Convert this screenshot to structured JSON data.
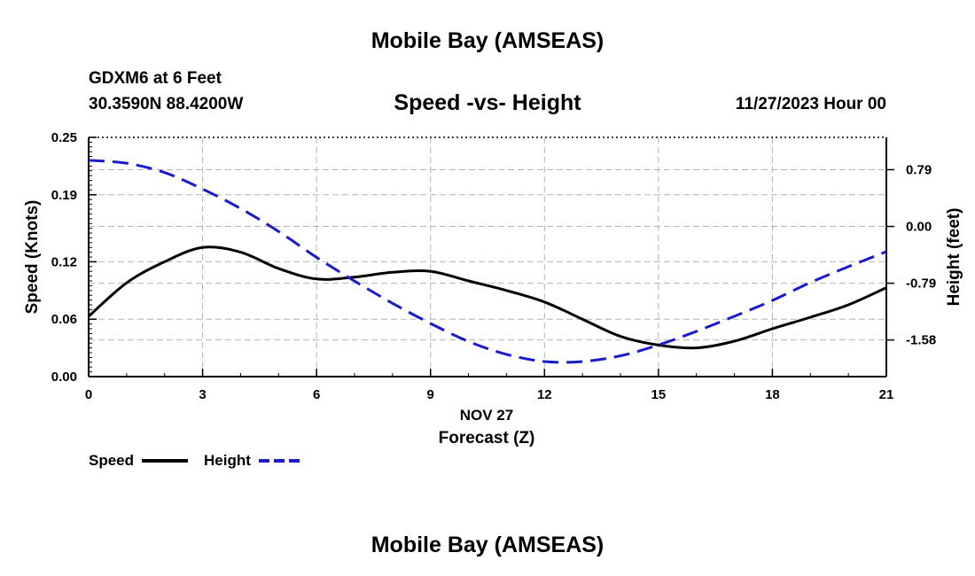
{
  "page": {
    "title": "Mobile Bay (AMSEAS)",
    "title_repeat": "Mobile Bay (AMSEAS)",
    "station": "GDXM6 at 6 Feet",
    "coords": "30.3590N  88.4200W",
    "subtitle": "Speed -vs- Height",
    "datetime": "11/27/2023 Hour 00"
  },
  "colors": {
    "speed": "#000000",
    "height": "#1a1acc",
    "grid": "#b4b4b4"
  },
  "chart_data": {
    "type": "line",
    "title": "Speed -vs- Height",
    "xlabel": "Forecast (Z)",
    "xdate": "NOV 27",
    "xlim": [
      0,
      21
    ],
    "xticks": [
      0,
      3,
      6,
      9,
      12,
      15,
      18,
      21
    ],
    "x_tick_labels": [
      "0",
      "3",
      "6",
      "9",
      "12",
      "15",
      "18",
      "21"
    ],
    "ylabel_left": "Speed (Knots)",
    "ylim_left": [
      0,
      0.25
    ],
    "yticks_left": [
      0,
      0.06,
      0.12,
      0.19,
      0.25
    ],
    "y_tick_labels_left": [
      "0.00",
      "0.06",
      "0.12",
      "0.19",
      "0.25"
    ],
    "ylabel_right": "Height (feet)",
    "ylim_right": [
      -2.09,
      1.24
    ],
    "yticks_right": [
      -1.58,
      -0.79,
      0.0,
      0.79
    ],
    "y_tick_labels_right": [
      "-1.58",
      "-0.79",
      "0.00",
      "0.79"
    ],
    "grid": true,
    "series": [
      {
        "name": "Speed",
        "axis": "left",
        "style": "solid",
        "x": [
          0,
          1,
          2,
          3,
          4,
          5,
          6,
          7,
          8,
          9,
          10,
          11,
          12,
          13,
          14,
          15,
          16,
          17,
          18,
          19,
          20,
          21
        ],
        "values": [
          0.063,
          0.098,
          0.12,
          0.135,
          0.13,
          0.113,
          0.102,
          0.104,
          0.109,
          0.11,
          0.1,
          0.09,
          0.078,
          0.06,
          0.042,
          0.033,
          0.03,
          0.037,
          0.05,
          0.062,
          0.075,
          0.093
        ]
      },
      {
        "name": "Height",
        "axis": "right",
        "style": "dashed",
        "x": [
          0,
          1,
          2,
          3,
          4,
          5,
          6,
          7,
          8,
          9,
          10,
          11,
          12,
          13,
          14,
          15,
          16,
          17,
          18,
          19,
          20,
          21
        ],
        "values": [
          0.92,
          0.88,
          0.75,
          0.52,
          0.25,
          -0.07,
          -0.43,
          -0.76,
          -1.07,
          -1.35,
          -1.6,
          -1.78,
          -1.88,
          -1.88,
          -1.8,
          -1.65,
          -1.46,
          -1.25,
          -1.03,
          -0.78,
          -0.56,
          -0.35
        ]
      }
    ],
    "legend": [
      {
        "label": "Speed",
        "style": "solid"
      },
      {
        "label": "Height",
        "style": "dashed"
      }
    ]
  }
}
